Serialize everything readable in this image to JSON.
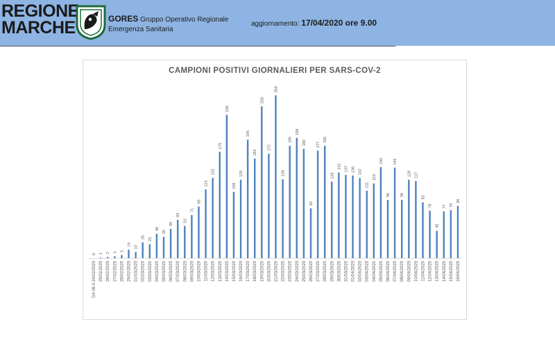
{
  "header": {
    "logo_line1": "REGIONE",
    "logo_line2": "MARCHE",
    "org_name": "GORES",
    "org_desc1": "Gruppo Operativo Regionale",
    "org_desc2": "Emergenza Sanitaria",
    "update_label": "aggiornamento:",
    "update_value": "17/04/2020 ore 9.00",
    "colors": {
      "band": "#8eb4e3"
    },
    "emblem_icon": "regione-marche-emblem-icon"
  },
  "chart_data": {
    "type": "bar",
    "title": "CAMPIONI POSITIVI GIORNALIERI PER SARS-COV-2",
    "xlabel": "",
    "ylabel": "",
    "ylim": [
      0,
      280
    ],
    "grid": false,
    "bar_color": "#4f81bd",
    "categories": [
      "DA 06 A 24/02/2020",
      "25/02/2020",
      "26/02/2020",
      "27/02/2020",
      "28/02/2020",
      "29/02/2020",
      "01/03/2020",
      "02/03/2020",
      "03/03/2020",
      "04/03/2020",
      "05/03/2020",
      "06/03/2020",
      "07/03/2020",
      "08/03/2020",
      "09/03/2020",
      "10/03/2020",
      "11/03/2020",
      "12/03/2020",
      "13/03/2020",
      "14/03/2020",
      "15/03/2020",
      "16/03/2020",
      "17/03/2020",
      "18/03/2020",
      "19/03/2020",
      "20/03/2020",
      "21/03/2020",
      "22/03/2020",
      "23/03/2020",
      "24/03/2020",
      "25/03/2020",
      "26/03/2020",
      "27/03/2020",
      "28/03/2020",
      "29/03/2020",
      "30/03/2020",
      "31/03/2020",
      "01/04/2020",
      "02/04/2020",
      "03/04/2020",
      "04/04/2020",
      "05/04/2020",
      "06/04/2020",
      "07/04/2020",
      "08/04/2020",
      "09/04/2020",
      "10/04/2020",
      "11/04/2020",
      "12/04/2020",
      "13/04/2020",
      "14/04/2020",
      "15/04/2020",
      "16/04/2020"
    ],
    "values": [
      0,
      1,
      2,
      3,
      5,
      14,
      10,
      26,
      23,
      40,
      35,
      48,
      63,
      53,
      71,
      85,
      113,
      132,
      175,
      236,
      109,
      129,
      195,
      164,
      250,
      172,
      268,
      130,
      185,
      198,
      180,
      82,
      177,
      185,
      126,
      141,
      137,
      136,
      132,
      111,
      123,
      150,
      96,
      149,
      96,
      129,
      127,
      92,
      78,
      45,
      77,
      79,
      86
    ]
  }
}
